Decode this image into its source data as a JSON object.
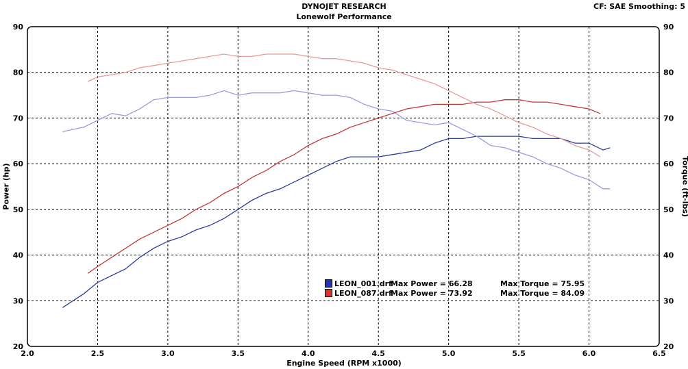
{
  "header": {
    "corner_info": "CF: SAE  Smoothing: 5"
  },
  "chart_data": {
    "type": "line",
    "title": "DYNOJET RESEARCH",
    "subtitle": "Lonewolf Performance",
    "xlabel": "Engine Speed (RPM x1000)",
    "ylabel": "Power (hp)",
    "y2label": "Torque (ft-lbs)",
    "xlim": [
      2.0,
      6.5
    ],
    "ylim": [
      20,
      90
    ],
    "y2lim": [
      20,
      90
    ],
    "xticks": [
      "2.0",
      "2.5",
      "3.0",
      "3.5",
      "4.0",
      "4.5",
      "5.0",
      "5.5",
      "6.0",
      "6.5"
    ],
    "yticks": [
      "20",
      "30",
      "40",
      "50",
      "60",
      "70",
      "80",
      "90"
    ],
    "grid": true,
    "legend_placement": "bottom-center",
    "legend": [
      {
        "file": "LEON_001.drf",
        "power_label": "Max Power = 66.28",
        "torque_label": "Max Torque = 75.95",
        "color": "#2233bb"
      },
      {
        "file": "LEON_087.drf",
        "power_label": "Max Power = 73.92",
        "torque_label": "Max Torque = 84.09",
        "color": "#dd3333"
      }
    ],
    "series": [
      {
        "name": "LEON_001 Power",
        "color": "#2b3a9c",
        "x": [
          2.25,
          2.4,
          2.5,
          2.6,
          2.7,
          2.8,
          2.9,
          3.0,
          3.1,
          3.2,
          3.3,
          3.4,
          3.5,
          3.6,
          3.7,
          3.8,
          3.9,
          4.0,
          4.1,
          4.2,
          4.3,
          4.4,
          4.5,
          4.6,
          4.7,
          4.8,
          4.9,
          5.0,
          5.1,
          5.2,
          5.3,
          5.4,
          5.5,
          5.6,
          5.7,
          5.8,
          5.9,
          6.0,
          6.1,
          6.15
        ],
        "y": [
          28.5,
          31.5,
          34,
          35.5,
          37,
          39.5,
          41.5,
          43,
          44,
          45.5,
          46.5,
          48,
          50,
          52,
          53.5,
          54.5,
          56,
          57.5,
          59,
          60.5,
          61.5,
          61.5,
          61.5,
          62,
          62.5,
          63,
          64.5,
          65.5,
          65.5,
          66,
          66,
          66,
          66,
          65.5,
          65.5,
          65.5,
          64.5,
          64.5,
          63,
          63.5
        ]
      },
      {
        "name": "LEON_001 Torque",
        "color": "#9a9be0",
        "x": [
          2.25,
          2.4,
          2.5,
          2.6,
          2.7,
          2.8,
          2.9,
          3.0,
          3.1,
          3.2,
          3.3,
          3.4,
          3.5,
          3.6,
          3.7,
          3.8,
          3.9,
          4.0,
          4.1,
          4.2,
          4.3,
          4.4,
          4.5,
          4.6,
          4.7,
          4.8,
          4.9,
          5.0,
          5.1,
          5.2,
          5.3,
          5.4,
          5.5,
          5.6,
          5.7,
          5.8,
          5.9,
          6.0,
          6.1,
          6.15
        ],
        "y": [
          67,
          68,
          69.5,
          71,
          70.5,
          72,
          74,
          74.5,
          74.5,
          74.5,
          75,
          76,
          75,
          75.5,
          75.5,
          75.5,
          76,
          75.5,
          75,
          75,
          74.5,
          73,
          72,
          71.5,
          69.5,
          69,
          68.5,
          69,
          67.5,
          66,
          64,
          63.5,
          62.5,
          61.5,
          60,
          59,
          57.5,
          56.5,
          54.5,
          54.5
        ]
      },
      {
        "name": "LEON_087 Power",
        "color": "#c03a3a",
        "x": [
          2.43,
          2.5,
          2.6,
          2.7,
          2.8,
          2.9,
          3.0,
          3.1,
          3.2,
          3.3,
          3.4,
          3.5,
          3.6,
          3.7,
          3.8,
          3.9,
          4.0,
          4.1,
          4.2,
          4.3,
          4.4,
          4.5,
          4.6,
          4.7,
          4.8,
          4.9,
          5.0,
          5.1,
          5.2,
          5.3,
          5.4,
          5.5,
          5.6,
          5.7,
          5.8,
          5.9,
          6.0,
          6.08
        ],
        "y": [
          36,
          37.5,
          39.5,
          41.5,
          43.5,
          45,
          46.5,
          48,
          50,
          51.5,
          53.5,
          55,
          57,
          58.5,
          60.5,
          62,
          64,
          65.5,
          66.5,
          68,
          69,
          70,
          71,
          72,
          72.5,
          73,
          73,
          73,
          73.5,
          73.5,
          74,
          74,
          73.5,
          73.5,
          73,
          72.5,
          72,
          71
        ]
      },
      {
        "name": "LEON_087 Torque",
        "color": "#e89a9a",
        "x": [
          2.43,
          2.5,
          2.6,
          2.7,
          2.8,
          2.9,
          3.0,
          3.1,
          3.2,
          3.3,
          3.4,
          3.5,
          3.6,
          3.7,
          3.8,
          3.9,
          4.0,
          4.1,
          4.2,
          4.3,
          4.4,
          4.5,
          4.6,
          4.7,
          4.8,
          4.9,
          5.0,
          5.1,
          5.2,
          5.3,
          5.4,
          5.5,
          5.6,
          5.7,
          5.8,
          5.9,
          6.0,
          6.08
        ],
        "y": [
          78,
          79,
          79.5,
          80,
          81,
          81.5,
          82,
          82.5,
          83,
          83.5,
          84,
          83.5,
          83.5,
          84,
          84,
          84,
          83.5,
          83,
          83,
          82.5,
          82,
          81,
          80.5,
          79.5,
          78.5,
          77.5,
          76,
          74.5,
          73,
          72,
          70.5,
          69,
          68,
          66.5,
          65.5,
          64,
          63,
          61.5
        ]
      }
    ]
  }
}
